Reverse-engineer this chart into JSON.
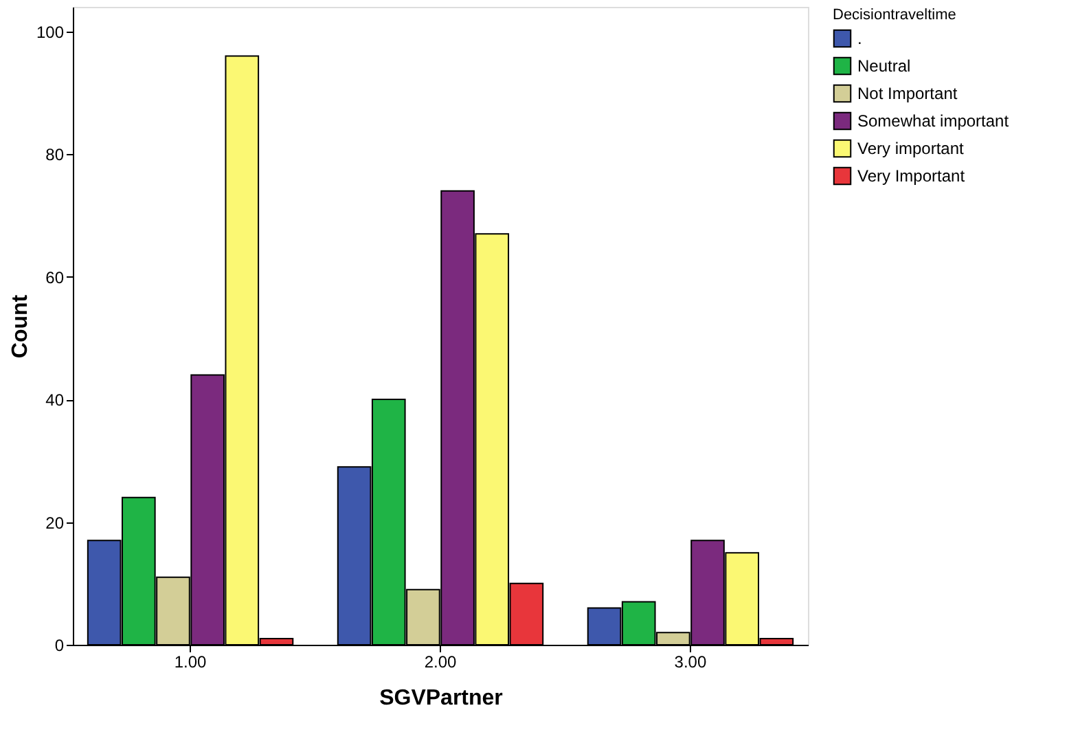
{
  "chart_data": {
    "type": "bar",
    "xlabel": "SGVPartner",
    "ylabel": "Count",
    "legend_title": "Decisiontraveltime",
    "legend": "top right",
    "grid": false,
    "categories": [
      "1.00",
      "2.00",
      "3.00"
    ],
    "ylim": [
      0,
      104
    ],
    "yticks": [
      0,
      20,
      40,
      60,
      80,
      100
    ],
    "series": [
      {
        "name": ".",
        "color": "#3e58ac",
        "values": [
          17,
          29,
          6
        ]
      },
      {
        "name": "Neutral",
        "color": "#1fb446",
        "values": [
          24,
          40,
          7
        ]
      },
      {
        "name": "Not Important",
        "color": "#d3ce97",
        "values": [
          11,
          9,
          2
        ]
      },
      {
        "name": "Somewhat important",
        "color": "#7b2a7e",
        "values": [
          44,
          74,
          17
        ]
      },
      {
        "name": "Very important",
        "color": "#fbf873",
        "values": [
          96,
          67,
          15
        ]
      },
      {
        "name": "Very Important",
        "color": "#e8363b",
        "values": [
          1,
          10,
          1
        ]
      }
    ]
  }
}
